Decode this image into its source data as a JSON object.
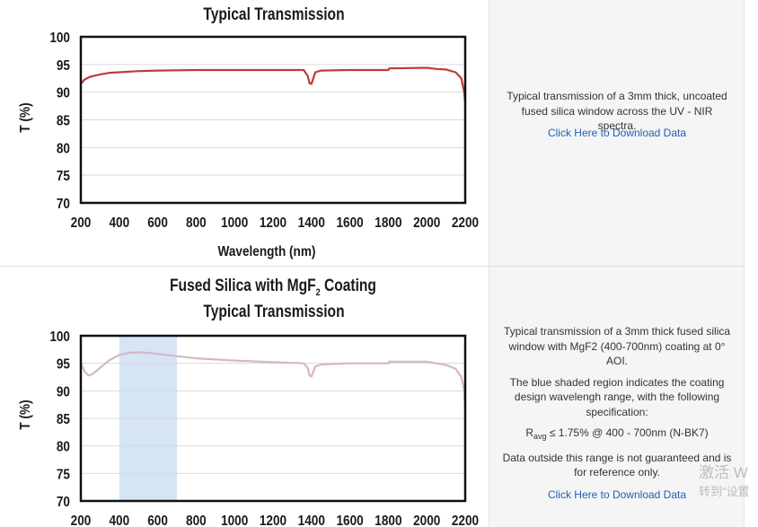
{
  "panels": [
    {
      "description": "Typical transmission of a 3mm thick, uncoated fused silica window across the UV - NIR spectra.",
      "link": "Click Here to Download Data"
    },
    {
      "description_1": "Typical transmission of a 3mm thick fused silica window with MgF2 (400-700nm) coating at 0° AOI.",
      "description_2": "The blue shaded region indicates the coating design wavelengh range, with the following specification:",
      "spec_main": "R",
      "spec_sub": "avg",
      "spec_rest": " ≤ 1.75% @ 400 - 700nm (N-BK7)",
      "description_3": "Data outside this range is not guaranteed and is for reference only.",
      "link": "Click Here to Download Data"
    }
  ],
  "watermark": {
    "line1": "激活 W",
    "line2": "转到\"设置"
  },
  "chart_data": [
    {
      "type": "line",
      "title": "Typical Transmission",
      "xlabel": "Wavelength (nm)",
      "ylabel": "T (%)",
      "xlim": [
        200,
        2200
      ],
      "ylim": [
        70,
        100
      ],
      "xticks": [
        200,
        400,
        600,
        800,
        1000,
        1200,
        1400,
        1600,
        1800,
        2000,
        2200
      ],
      "yticks": [
        70,
        75,
        80,
        85,
        90,
        95,
        100
      ],
      "grid": true,
      "color": "#c03a3a",
      "series": [
        {
          "x": [
            200,
            220,
            250,
            300,
            350,
            400,
            500,
            600,
            800,
            1000,
            1200,
            1360,
            1380,
            1390,
            1400,
            1420,
            1450,
            1600,
            1800,
            1805,
            2000,
            2050,
            2100,
            2150,
            2180,
            2195,
            2200
          ],
          "y": [
            91.5,
            92.3,
            92.8,
            93.2,
            93.5,
            93.6,
            93.8,
            93.9,
            94.0,
            94.0,
            94.0,
            94.0,
            93.0,
            91.6,
            91.5,
            93.6,
            93.9,
            94.0,
            94.0,
            94.3,
            94.4,
            94.2,
            94.1,
            93.6,
            92.5,
            90.0,
            88.0
          ]
        }
      ]
    },
    {
      "type": "line",
      "title_main": "Fused Silica with MgF",
      "title_sub": "2",
      "title_rest": " Coating",
      "title_line2": "Typical Transmission",
      "ylabel": "T (%)",
      "xlim": [
        200,
        2200
      ],
      "ylim": [
        70,
        100
      ],
      "xticks": [
        200,
        400,
        600,
        800,
        1000,
        1200,
        1400,
        1600,
        1800,
        2000,
        2200
      ],
      "yticks": [
        70,
        75,
        80,
        85,
        90,
        95,
        100
      ],
      "grid": true,
      "color": "#d4b8c4",
      "shaded_region": [
        400,
        700
      ],
      "shade_color": "#d6e5f4",
      "series": [
        {
          "x": [
            200,
            220,
            240,
            260,
            280,
            300,
            350,
            400,
            450,
            500,
            550,
            600,
            700,
            800,
            1000,
            1200,
            1360,
            1380,
            1390,
            1400,
            1420,
            1450,
            1600,
            1800,
            1805,
            2000,
            2050,
            2100,
            2150,
            2180,
            2195,
            2200
          ],
          "y": [
            95.0,
            93.5,
            92.8,
            93.0,
            93.6,
            94.2,
            95.6,
            96.5,
            96.9,
            97.0,
            96.9,
            96.7,
            96.3,
            95.9,
            95.5,
            95.2,
            95.0,
            94.2,
            92.8,
            92.6,
            94.4,
            94.8,
            95.0,
            95.0,
            95.3,
            95.3,
            95.0,
            94.7,
            94.0,
            92.5,
            90.0,
            86.0
          ]
        }
      ]
    }
  ]
}
